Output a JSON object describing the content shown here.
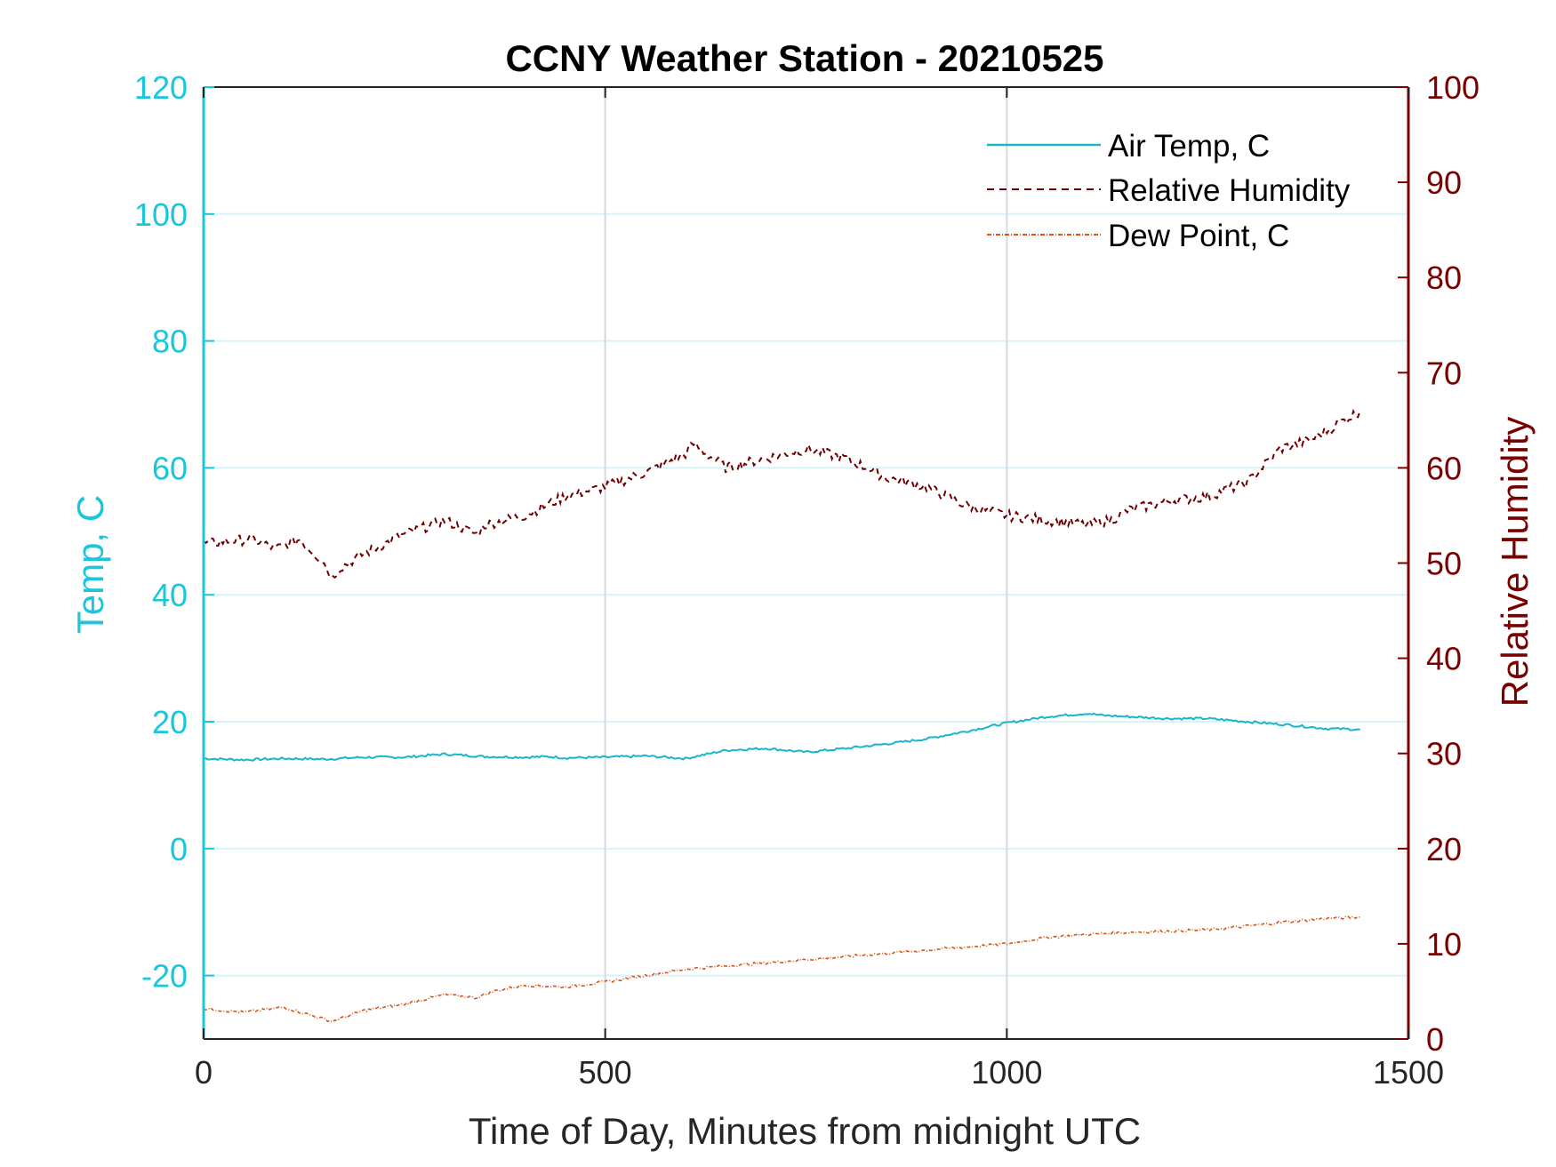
{
  "chart_data": {
    "type": "line",
    "title": "CCNY Weather Station - 20210525",
    "xlabel": "Time of Day, Minutes from midnight UTC",
    "ylabel_left": "Temp, C",
    "ylabel_right": "Relative Humidity",
    "xlim": [
      0,
      1500
    ],
    "ylim_left": [
      -30,
      120
    ],
    "ylim_right": [
      0,
      100
    ],
    "x_ticks": [
      "0",
      "500",
      "1000",
      "1500"
    ],
    "x_tick_values": [
      0,
      500,
      1000,
      1500
    ],
    "y_left_ticks": [
      "-20",
      "0",
      "20",
      "40",
      "60",
      "80",
      "100",
      "120"
    ],
    "y_left_tick_values": [
      -20,
      0,
      20,
      40,
      60,
      80,
      100,
      120
    ],
    "y_right_ticks": [
      "0",
      "10",
      "20",
      "30",
      "40",
      "50",
      "60",
      "70",
      "80",
      "90",
      "100"
    ],
    "y_right_tick_values": [
      0,
      10,
      20,
      30,
      40,
      50,
      60,
      70,
      80,
      90,
      100
    ],
    "grid": true,
    "legend_position": "top-right",
    "colors": {
      "left_axis": "#1ac6d9",
      "right_axis": "#7a0000",
      "air_temp": "#1ab5cc",
      "humidity": "#700000",
      "dew_point": "#d95319",
      "grid_h": "#d6f3f8",
      "grid_v": "#d5d9de"
    },
    "series": [
      {
        "name": "Air Temp, C",
        "axis": "left",
        "style": "solid",
        "x": [
          0,
          50,
          100,
          150,
          200,
          250,
          300,
          350,
          400,
          430,
          450,
          500,
          550,
          600,
          650,
          700,
          750,
          800,
          850,
          900,
          950,
          1000,
          1050,
          1100,
          1120,
          1150,
          1200,
          1250,
          1300,
          1350,
          1400,
          1440
        ],
        "values": [
          14.2,
          14.0,
          14.2,
          14.1,
          14.4,
          14.4,
          14.9,
          14.5,
          14.4,
          14.5,
          14.3,
          14.4,
          14.6,
          14.2,
          15.5,
          15.8,
          15.2,
          15.8,
          16.5,
          17.3,
          18.5,
          19.8,
          20.8,
          21.3,
          21.0,
          20.8,
          20.5,
          20.5,
          20.0,
          19.5,
          18.9,
          18.8
        ]
      },
      {
        "name": "Relative Humidity",
        "axis": "right",
        "style": "dashed",
        "x": [
          0,
          30,
          60,
          90,
          120,
          150,
          160,
          170,
          200,
          250,
          300,
          340,
          350,
          400,
          450,
          500,
          550,
          600,
          610,
          650,
          700,
          750,
          800,
          850,
          900,
          950,
          1000,
          1050,
          1100,
          1130,
          1150,
          1200,
          1250,
          1300,
          1340,
          1380,
          1420,
          1440
        ],
        "values": [
          52,
          52.3,
          52.5,
          51.5,
          52.5,
          50,
          48.5,
          49.5,
          51,
          53,
          54.5,
          53,
          54,
          55,
          57,
          58,
          59.5,
          61.5,
          62.5,
          60,
          61,
          62,
          61,
          59,
          58,
          56,
          55,
          54.5,
          54,
          54.5,
          55.5,
          56.5,
          57,
          58.5,
          62,
          63,
          65,
          66
        ]
      },
      {
        "name": "Dew Point, C",
        "axis": "left",
        "style": "dashdot",
        "x": [
          0,
          50,
          100,
          140,
          160,
          170,
          200,
          250,
          300,
          340,
          360,
          400,
          450,
          500,
          550,
          600,
          650,
          700,
          750,
          800,
          850,
          900,
          950,
          1000,
          1050,
          1100,
          1150,
          1200,
          1250,
          1300,
          1350,
          1400,
          1440
        ],
        "values": [
          -25.2,
          -25.8,
          -25,
          -26.5,
          -27.2,
          -26.8,
          -25.5,
          -24.5,
          -23,
          -23.5,
          -22.5,
          -21.5,
          -21.8,
          -21,
          -20,
          -19,
          -18.5,
          -18,
          -17.5,
          -17,
          -16.5,
          -16,
          -15.5,
          -15,
          -14,
          -13.5,
          -13.2,
          -13,
          -12.8,
          -12.2,
          -11.5,
          -11,
          -10.8
        ]
      }
    ]
  }
}
